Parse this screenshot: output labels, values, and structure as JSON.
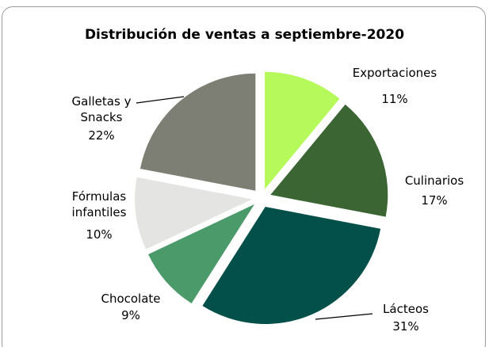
{
  "chart_data": {
    "type": "pie",
    "title": "Distribución de ventas a septiembre-2020",
    "categories": [
      "Exportaciones",
      "Culinarios",
      "Lácteos",
      "Chocolate",
      "Fórmulas infantiles",
      "Galletas y Snacks"
    ],
    "values": [
      11,
      17,
      31,
      9,
      10,
      22
    ],
    "value_labels": [
      "11%",
      "17%",
      "31%",
      "9%",
      "10%",
      "22%"
    ],
    "colors": [
      "#b5f95a",
      "#3b6633",
      "#034f4a",
      "#4a9a6a",
      "#e4e4e2",
      "#7d7f74"
    ]
  }
}
